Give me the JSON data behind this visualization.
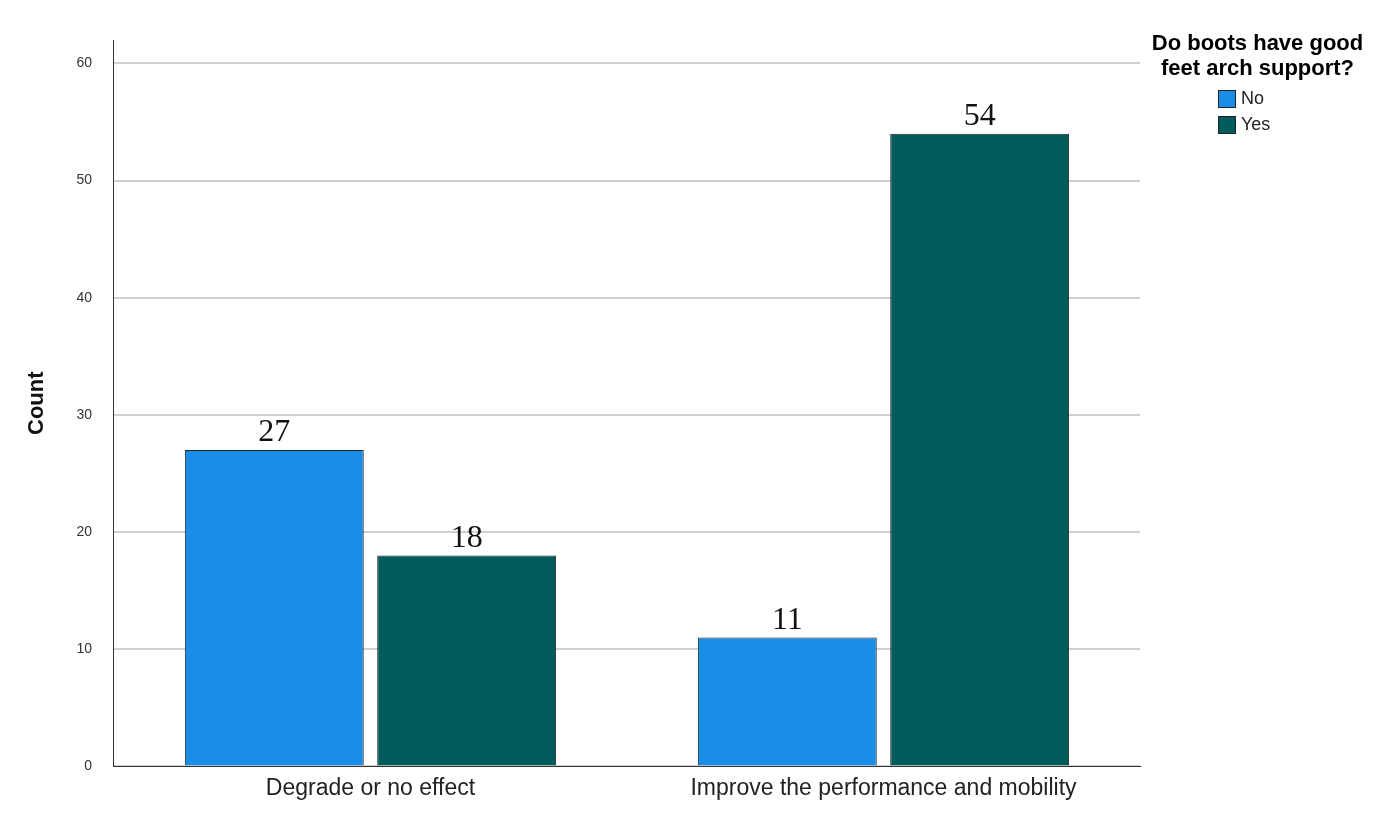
{
  "chart_data": {
    "type": "bar",
    "ylabel": "Count",
    "legend_title": "Do boots have good feet arch support?",
    "categories": [
      "Degrade or no effect",
      "Improve the performance and mobility"
    ],
    "series": [
      {
        "name": "No",
        "color": "#1a8de6",
        "values": [
          27,
          11
        ]
      },
      {
        "name": "Yes",
        "color": "#005c5a",
        "values": [
          18,
          54
        ]
      }
    ],
    "ylim": [
      0,
      62
    ],
    "yticks": [
      0,
      10,
      20,
      30,
      40,
      50,
      60
    ],
    "grid": "y",
    "legend": "top right",
    "data_labels": true
  }
}
